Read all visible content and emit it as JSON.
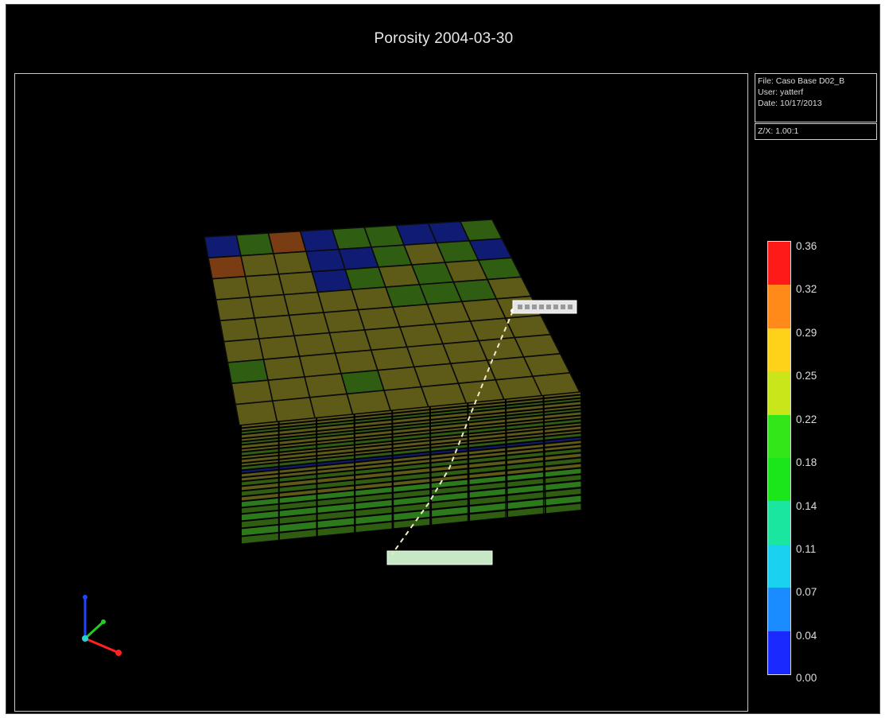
{
  "window": {
    "title": "Porosity 2004-03-30"
  },
  "info_panel": {
    "file": "File: Caso Base D02_B",
    "user": "User: yatterf",
    "date": "Date: 10/17/2013",
    "scale": "Z/X: 1.00:1"
  },
  "legend": {
    "labels": [
      "0.36",
      "0.32",
      "0.29",
      "0.25",
      "0.22",
      "0.18",
      "0.14",
      "0.11",
      "0.07",
      "0.04",
      "0.00"
    ],
    "colors": [
      "#ff1a1a",
      "#ff8a1a",
      "#ffd21a",
      "#c8e61a",
      "#33e61a",
      "#1ae61a",
      "#1ae6a0",
      "#1ad2f0",
      "#1a8cff",
      "#1a2aff"
    ]
  },
  "grid_colors": {
    "olive": "#5e5a18",
    "green": "#2f5e12",
    "blue": "#101c74",
    "rust": "#7a3c12",
    "bright_green": "#2c7a1c",
    "pale": "#c6e8c4"
  },
  "axes_icon": {
    "colors": {
      "x": "#ff2020",
      "y": "#22cc22",
      "z": "#2244ff",
      "origin": "#2ad2d2"
    }
  }
}
